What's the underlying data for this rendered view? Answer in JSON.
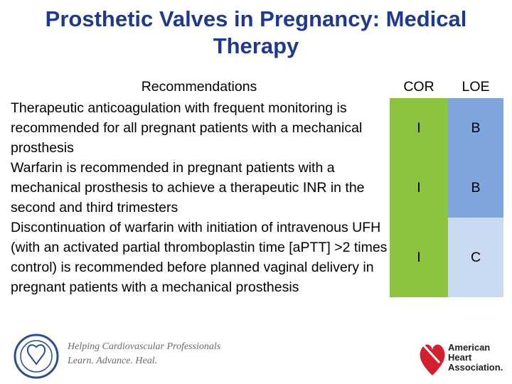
{
  "header": {
    "title": "Prosthetic Valves in Pregnancy: Medical Therapy"
  },
  "table": {
    "columns": [
      "Recommendations",
      "COR",
      "LOE"
    ],
    "rows": [
      [
        "Therapeutic anticoagulation with frequent monitoring is recommended for all pregnant patients with a mechanical prosthesis",
        "I",
        "B"
      ],
      [
        "Warfarin is recommended in pregnant patients with a mechanical prosthesis to achieve a therapeutic INR in the second and third trimesters",
        "I",
        "B"
      ],
      [
        "Discontinuation of warfarin with initiation of intravenous UFH (with an activated partial thromboplastin time [aPTT] >2 times control) is recommended before planned vaginal delivery in pregnant patients with a mechanical prosthesis",
        "I",
        "C"
      ]
    ]
  },
  "footer": {
    "acc_lines": [
      "Helping Cardiovascular Professionals",
      "Learn. Advance. Heal."
    ],
    "aha_lines": [
      "American",
      "Heart",
      "Association."
    ]
  }
}
